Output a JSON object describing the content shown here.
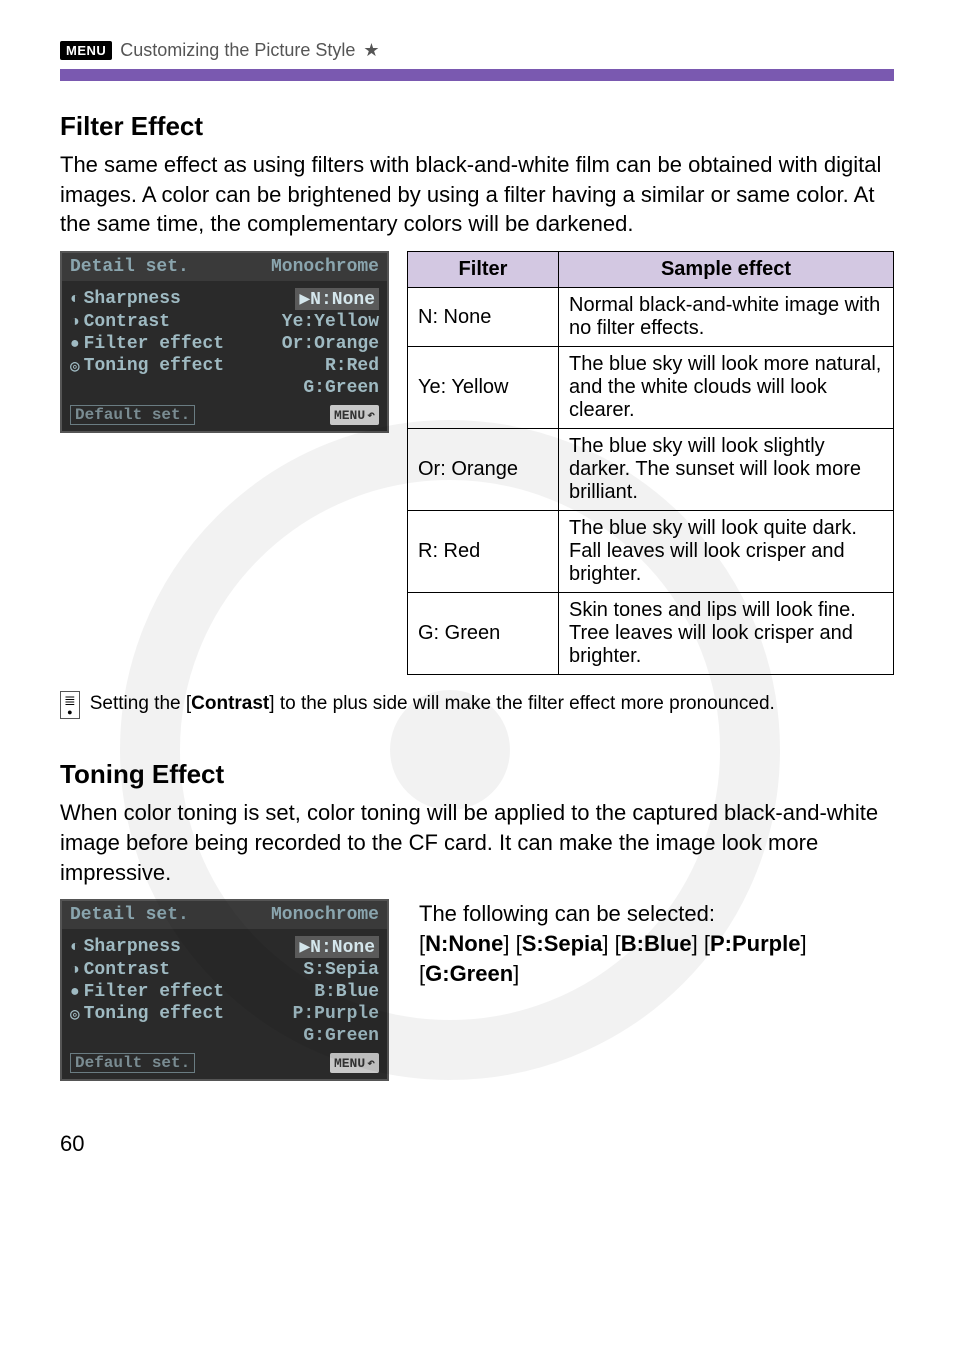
{
  "header": {
    "menu_badge": "MENU",
    "title_text": "Customizing the Picture Style",
    "star": "★"
  },
  "section_filter": {
    "title": "Filter Effect",
    "intro": "The same effect as using filters with black-and-white film can be obtained with digital images. A color can be brightened by using a filter having a similar or same color. At the same time, the complementary colors will be darkened."
  },
  "lcd1": {
    "title_left": "Detail set.",
    "title_right": "Monochrome",
    "rows": [
      {
        "icon": "◐",
        "left": "Sharpness",
        "right": "▶N:None",
        "hl": true
      },
      {
        "icon": "◑",
        "left": "Contrast",
        "right": "Ye:Yellow",
        "hl": false
      },
      {
        "icon": "●",
        "left": "Filter effect",
        "right": "Or:Orange",
        "hl": false
      },
      {
        "icon": "◎",
        "left": "Toning effect",
        "right": "R:Red",
        "hl": false
      },
      {
        "icon": "",
        "left": "",
        "right": "G:Green",
        "hl": false
      }
    ],
    "default": "Default set.",
    "menu_return": "MENU"
  },
  "filter_table": {
    "header_filter": "Filter",
    "header_sample": "Sample effect",
    "rows": [
      {
        "filter": "N: None",
        "sample": "Normal black-and-white image with no filter effects."
      },
      {
        "filter": "Ye: Yellow",
        "sample": "The blue sky will look more natural, and the white clouds will look clearer."
      },
      {
        "filter": "Or: Orange",
        "sample": "The blue sky will look slightly darker. The sunset will look more brilliant."
      },
      {
        "filter": "R: Red",
        "sample": "The blue sky will look quite dark. Fall leaves will look crisper and brighter."
      },
      {
        "filter": "G: Green",
        "sample": "Skin tones and lips will look fine. Tree leaves will look crisper and brighter."
      }
    ]
  },
  "note": {
    "pre": "Setting the [",
    "bold": "Contrast",
    "post": "] to the plus side will make the filter effect more pronounced."
  },
  "section_toning": {
    "title": "Toning Effect",
    "intro": "When color toning is set, color toning will be applied to the captured black-and-white image before being recorded to the CF card. It can make the image look more impressive."
  },
  "lcd2": {
    "title_left": "Detail set.",
    "title_right": "Monochrome",
    "rows": [
      {
        "icon": "◐",
        "left": "Sharpness",
        "right": "▶N:None",
        "hl": true
      },
      {
        "icon": "◑",
        "left": "Contrast",
        "right": "S:Sepia",
        "hl": false
      },
      {
        "icon": "●",
        "left": "Filter effect",
        "right": "B:Blue",
        "hl": false
      },
      {
        "icon": "◎",
        "left": "Toning effect",
        "right": "P:Purple",
        "hl": false
      },
      {
        "icon": "",
        "left": "",
        "right": "G:Green",
        "hl": false
      }
    ],
    "default": "Default set.",
    "menu_return": "MENU"
  },
  "toning_right": {
    "line1": "The following can be selected:",
    "opts": [
      "N:None",
      "S:Sepia",
      "B:Blue",
      "P:Purple",
      "G:Green"
    ]
  },
  "page_number": "60"
}
